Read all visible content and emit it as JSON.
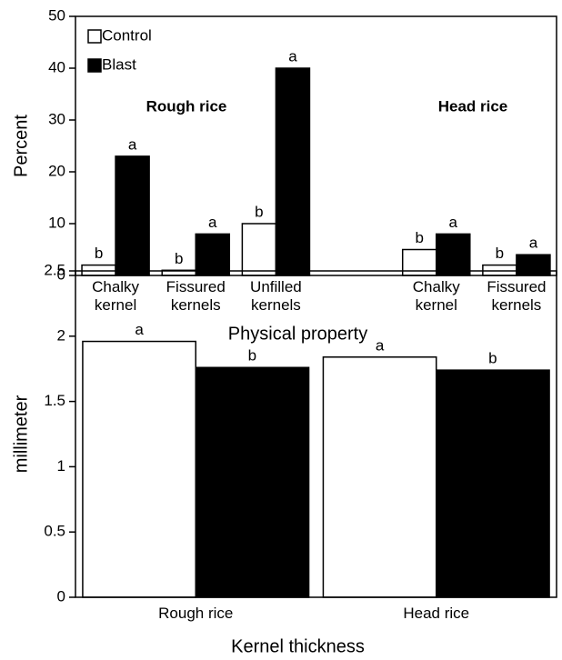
{
  "chart_data": [
    {
      "type": "bar",
      "categories": [
        "Chalky kernel",
        "Fissured kernels",
        "Unfilled kernels",
        null,
        "Chalky kernel",
        "Fissured kernels"
      ],
      "series": [
        {
          "name": "Control",
          "color": "#ffffff",
          "values": [
            2,
            1,
            10,
            null,
            5,
            2
          ],
          "letters": [
            "b",
            "b",
            "b",
            null,
            "b",
            "b"
          ]
        },
        {
          "name": "Blast",
          "color": "#000000",
          "values": [
            23,
            8,
            40,
            null,
            8,
            4
          ],
          "letters": [
            "a",
            "a",
            "a",
            null,
            "a",
            "a"
          ]
        }
      ],
      "group_labels": [
        "Rough rice",
        "Head rice"
      ],
      "ylabel": "Percent",
      "xlabel": "Physical property",
      "ylim": [
        0,
        50
      ],
      "yticks": [
        0,
        10,
        20,
        30,
        40,
        50
      ],
      "legend": "upper left"
    },
    {
      "type": "bar",
      "categories": [
        "Rough rice",
        "Head rice"
      ],
      "series": [
        {
          "color": "#ffffff",
          "values": [
            1.96,
            1.84
          ],
          "letters": [
            "a",
            "a"
          ]
        },
        {
          "color": "#000000",
          "values": [
            1.76,
            1.74
          ],
          "letters": [
            "b",
            "b"
          ]
        }
      ],
      "ylabel": "millimeter",
      "xlabel": "Kernel thickness",
      "ylim": [
        0,
        2.5
      ],
      "yticks": [
        0,
        0.5,
        1,
        1.5,
        2,
        2.5
      ]
    }
  ]
}
